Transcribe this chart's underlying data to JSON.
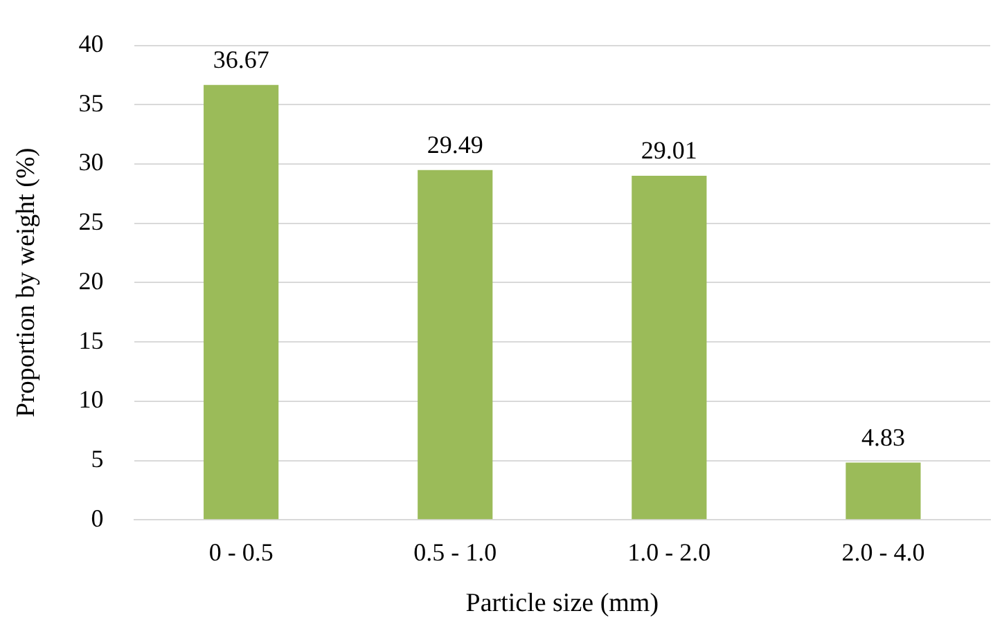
{
  "chart_data": {
    "type": "bar",
    "xlabel": "Particle size (mm)",
    "ylabel": "Proportion by weight (%)",
    "categories": [
      "0 - 0.5",
      "0.5 - 1.0",
      "1.0 - 2.0",
      "2.0 - 4.0"
    ],
    "values": [
      36.67,
      29.49,
      29.01,
      4.83
    ],
    "color": "#9bbb59",
    "ylim": [
      0,
      40
    ],
    "yticks": [
      0,
      5,
      10,
      15,
      20,
      25,
      30,
      35,
      40
    ],
    "grid": "y",
    "data_labels": true,
    "legend": false
  }
}
